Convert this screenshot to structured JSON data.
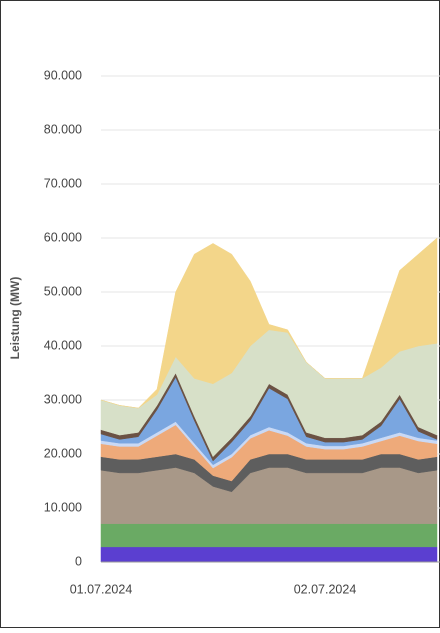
{
  "chart_data": {
    "type": "stacked-area",
    "y_label": "Leistung (MW)",
    "categories": [
      "01.07.2024",
      null,
      null,
      null,
      null,
      null,
      null,
      null,
      null,
      null,
      null,
      null,
      "02.07.2024",
      null,
      null,
      null,
      null,
      null,
      null
    ],
    "ylim": [
      0,
      90000
    ],
    "yticks": [
      0,
      {
        "value": 10000,
        "label": "10.000"
      },
      {
        "value": 20000,
        "label": "20.000"
      },
      {
        "value": 30000,
        "label": "30.000"
      },
      {
        "value": 40000,
        "label": "40.000"
      },
      {
        "value": 50000,
        "label": "50.000"
      },
      {
        "value": 60000,
        "label": "60.000"
      },
      {
        "value": 70000,
        "label": "70.000"
      },
      {
        "value": 80000,
        "label": "80.000"
      },
      {
        "value": 90000,
        "label": "90.000"
      }
    ],
    "grid": true,
    "series": [
      {
        "color": "#5b3fd0",
        "values": [
          2800,
          2800,
          2800,
          2800,
          2800,
          2800,
          2800,
          2800,
          2800,
          2800,
          2800,
          2800,
          2800,
          2800,
          2800,
          2800,
          2800,
          2800,
          2800
        ]
      },
      {
        "color": "#6aaa64",
        "values": [
          4300,
          4300,
          4300,
          4300,
          4300,
          4300,
          4300,
          4300,
          4300,
          4300,
          4300,
          4300,
          4300,
          4300,
          4300,
          4300,
          4300,
          4300,
          4300
        ]
      },
      {
        "color": "#a89888",
        "values": [
          9900,
          9400,
          9400,
          9900,
          10400,
          9400,
          6900,
          5900,
          9400,
          10400,
          10400,
          9400,
          9400,
          9400,
          9400,
          10400,
          10400,
          9400,
          9900
        ]
      },
      {
        "color": "#5e5e5e",
        "values": [
          2500,
          2500,
          2500,
          2500,
          2500,
          2500,
          2000,
          2000,
          2500,
          2500,
          2500,
          2500,
          2500,
          2500,
          2500,
          2500,
          2500,
          2500,
          2500
        ]
      },
      {
        "color": "#eeaa7a",
        "values": [
          2400,
          2400,
          2400,
          3900,
          5400,
          2400,
          1400,
          4400,
          3900,
          4400,
          3400,
          2400,
          1900,
          1900,
          2400,
          2400,
          3400,
          3400,
          2400
        ]
      },
      {
        "color": "#c9d9f5",
        "values": [
          600,
          600,
          600,
          600,
          600,
          600,
          600,
          600,
          600,
          600,
          600,
          600,
          600,
          600,
          600,
          600,
          600,
          600,
          600
        ]
      },
      {
        "color": "#7aa6e0",
        "values": [
          1200,
          700,
          1200,
          4200,
          8200,
          4200,
          700,
          2200,
          2700,
          7200,
          6200,
          1200,
          700,
          700,
          700,
          2200,
          6200,
          1200,
          200
        ]
      },
      {
        "color": "#6b5244",
        "values": [
          800,
          800,
          800,
          800,
          800,
          800,
          800,
          800,
          800,
          800,
          800,
          800,
          800,
          800,
          800,
          800,
          800,
          800,
          800
        ]
      },
      {
        "color": "#d7e0c8",
        "values": [
          5500,
          5500,
          4500,
          2000,
          3000,
          7000,
          13500,
          12000,
          13000,
          10000,
          11500,
          13000,
          11000,
          11000,
          10500,
          10000,
          8000,
          15000,
          17000
        ]
      },
      {
        "color": "#f3d68a",
        "values": [
          0,
          0,
          0,
          1000,
          12000,
          23000,
          26000,
          22000,
          12000,
          1000,
          500,
          0,
          0,
          0,
          0,
          8000,
          15000,
          17000,
          19500
        ]
      }
    ]
  }
}
